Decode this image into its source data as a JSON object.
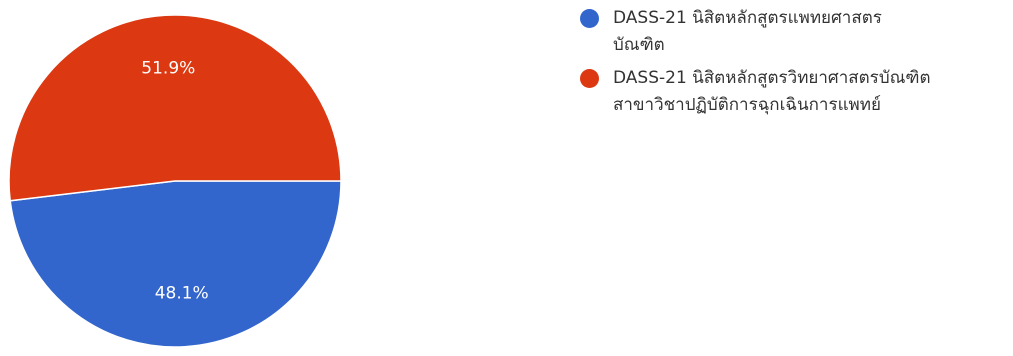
{
  "chart_data": {
    "type": "pie",
    "categories": [
      "DASS-21 นิสิตหลักสูตรแพทยศาสตรบัณฑิต",
      "DASS-21 นิสิตหลักสูตรวิทยาศาสตรบัณฑิต สาขาวิชาปฏิบัติการฉุกเฉินการแพทย์"
    ],
    "values": [
      48.1,
      51.9
    ],
    "value_labels": [
      "48.1%",
      "51.9%"
    ],
    "colors": [
      "#3366cc",
      "#dc3912"
    ],
    "legend_position": "top-right"
  },
  "legend": {
    "items": [
      {
        "lines": [
          "DASS-21 นิสิตหลักสูตรแพทยศาสตร",
          "บัณฑิต"
        ],
        "color": "#3366cc"
      },
      {
        "lines": [
          "DASS-21 นิสิตหลักสูตรวิทยาศาสตรบัณฑิต",
          "สาขาวิชาปฏิบัติการฉุกเฉินการแพทย์"
        ],
        "color": "#dc3912"
      }
    ]
  }
}
